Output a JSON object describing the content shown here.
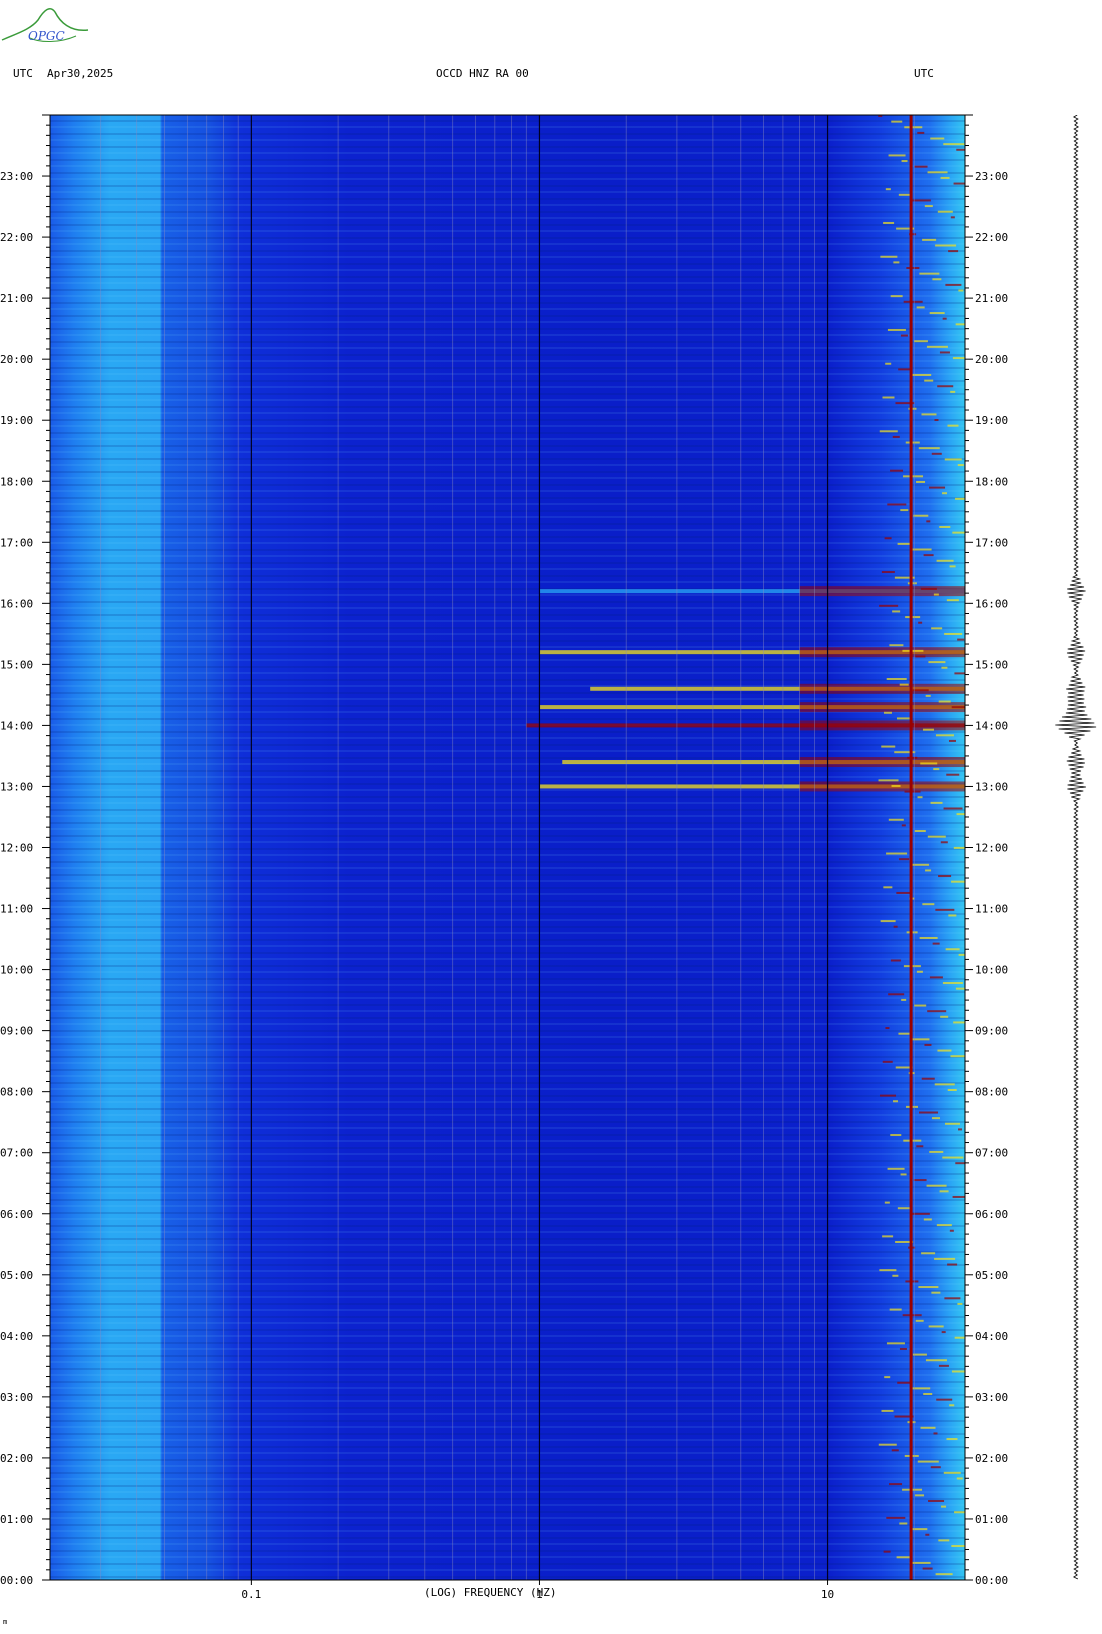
{
  "header": {
    "left_tz": "UTC",
    "date": "Apr30,2025",
    "title": "OCCD HNZ RA 00",
    "right_tz": "UTC"
  },
  "logo": {
    "text": "OPGC"
  },
  "chart_data": {
    "type": "heatmap",
    "title": "OCCD HNZ RA 00",
    "xlabel": "(LOG) FREQUENCY (HZ)",
    "xscale": "log",
    "xlim": [
      0.02,
      30
    ],
    "xticks": [
      {
        "value": 0.1,
        "label": "0.1"
      },
      {
        "value": 1,
        "label": "1"
      },
      {
        "value": 10,
        "label": "10"
      }
    ],
    "ylabel": "UTC",
    "ylim_hours": [
      0,
      24
    ],
    "yticks": [
      "00:00",
      "01:00",
      "02:00",
      "03:00",
      "04:00",
      "05:00",
      "06:00",
      "07:00",
      "08:00",
      "09:00",
      "10:00",
      "11:00",
      "12:00",
      "13:00",
      "14:00",
      "15:00",
      "16:00",
      "17:00",
      "18:00",
      "19:00",
      "20:00",
      "21:00",
      "22:00",
      "23:00"
    ],
    "colors": {
      "background": "#0a1ec9",
      "low": "#1a5be8",
      "mid": "#2aa8f4",
      "high": "#f5e31a",
      "peak": "#9a0000"
    },
    "events": [
      {
        "hour": 13.0,
        "fmin": 1.0,
        "fmax": 30,
        "intensity": "high"
      },
      {
        "hour": 13.4,
        "fmin": 1.2,
        "fmax": 30,
        "intensity": "high"
      },
      {
        "hour": 14.0,
        "fmin": 0.9,
        "fmax": 30,
        "intensity": "peak"
      },
      {
        "hour": 14.3,
        "fmin": 1.0,
        "fmax": 30,
        "intensity": "high"
      },
      {
        "hour": 14.6,
        "fmin": 1.5,
        "fmax": 30,
        "intensity": "high"
      },
      {
        "hour": 15.2,
        "fmin": 1.0,
        "fmax": 30,
        "intensity": "high"
      },
      {
        "hour": 16.2,
        "fmin": 1.0,
        "fmax": 30,
        "intensity": "mid"
      }
    ],
    "persistent_lines_hz": [
      19.5
    ],
    "grid": true
  },
  "footer": {
    "mark": "m"
  }
}
